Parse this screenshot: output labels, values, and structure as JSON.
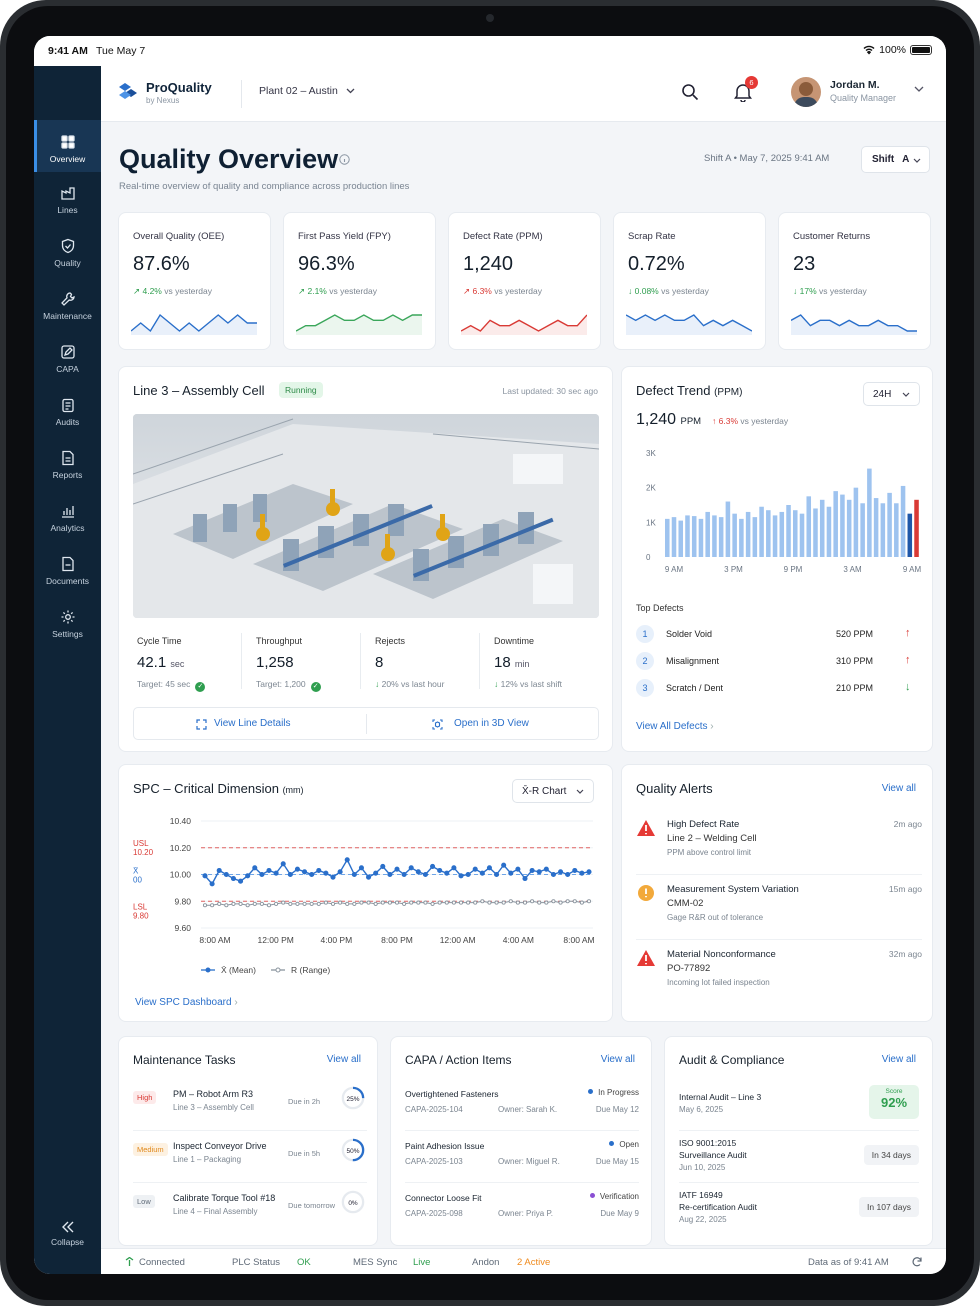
{
  "status": {
    "time": "9:41 AM",
    "date": "Tue May 7",
    "battery": "100%"
  },
  "brand": {
    "name": "ProQuality",
    "sub": "by Nexus"
  },
  "plant": "Plant 02 – Austin",
  "notifications": "6",
  "user": {
    "name": "Jordan M.",
    "role": "Quality Manager"
  },
  "sidebar": {
    "items": [
      {
        "label": "Overview",
        "icon": "grid-icon"
      },
      {
        "label": "Lines",
        "icon": "factory-icon"
      },
      {
        "label": "Quality",
        "icon": "shield-check-icon"
      },
      {
        "label": "Maintenance",
        "icon": "wrench-icon"
      },
      {
        "label": "CAPA",
        "icon": "edit-icon"
      },
      {
        "label": "Audits",
        "icon": "clipboard-icon"
      },
      {
        "label": "Reports",
        "icon": "report-icon"
      },
      {
        "label": "Analytics",
        "icon": "analytics-icon"
      },
      {
        "label": "Documents",
        "icon": "document-icon"
      },
      {
        "label": "Settings",
        "icon": "gear-icon"
      }
    ],
    "collapse": "Collapse"
  },
  "page": {
    "title": "Quality Overview",
    "subtitle": "Real-time overview of quality and compliance across production lines",
    "shift_info": "Shift A • May 7, 2025  9:41 AM",
    "shift_btn": "Shift   A"
  },
  "kpis": [
    {
      "label": "Overall Quality (OEE)",
      "value": "87.6%",
      "delta": "4.2%",
      "dir": "up",
      "delta_color": "#2f9e4f",
      "trend": "vs yesterday",
      "spark_color": "#2a6fca",
      "spark": [
        5,
        6,
        5,
        7,
        6,
        5,
        6,
        5,
        6,
        7,
        6,
        7,
        6,
        6
      ]
    },
    {
      "label": "First Pass Yield (FPY)",
      "value": "96.3%",
      "delta": "2.1%",
      "dir": "up",
      "delta_color": "#2f9e4f",
      "trend": "vs yesterday",
      "spark_color": "#3aa65a",
      "spark": [
        3,
        4,
        4,
        5,
        6,
        5,
        5,
        6,
        5,
        5,
        6,
        5,
        6,
        6
      ]
    },
    {
      "label": "Defect Rate (PPM)",
      "value": "1,240",
      "delta": "6.3%",
      "dir": "up",
      "delta_color": "#d93a35",
      "trend": "vs yesterday",
      "spark_color": "#d93a35",
      "spark": [
        4,
        5,
        4,
        6,
        5,
        5,
        6,
        5,
        4,
        5,
        6,
        5,
        5,
        7
      ]
    },
    {
      "label": "Scrap Rate",
      "value": "0.72%",
      "delta": "0.08%",
      "dir": "down",
      "delta_color": "#2f9e4f",
      "trend": "vs yesterday",
      "spark_color": "#2a6fca",
      "spark": [
        6,
        5,
        6,
        5,
        6,
        5,
        5,
        6,
        4,
        5,
        4,
        5,
        4,
        3
      ]
    },
    {
      "label": "Customer Returns",
      "value": "23",
      "delta": "17%",
      "dir": "down",
      "delta_color": "#2f9e4f",
      "trend": "vs yesterday",
      "spark_color": "#2a6fca",
      "spark": [
        6,
        7,
        5,
        6,
        6,
        5,
        6,
        5,
        5,
        6,
        5,
        5,
        4,
        4
      ]
    }
  ],
  "line": {
    "title": "Line 3 – Assembly Cell",
    "status": "Running",
    "updated": "Last updated: 30 sec ago",
    "metrics": [
      {
        "label": "Cycle Time",
        "value": "42.1",
        "unit": "sec",
        "sub": "Target: 45 sec"
      },
      {
        "label": "Throughput",
        "value": "1,258",
        "unit": "",
        "sub": "Target: 1,200"
      },
      {
        "label": "Rejects",
        "value": "8",
        "unit": "",
        "sub": "20% vs last hour"
      },
      {
        "label": "Downtime",
        "value": "18",
        "unit": "min",
        "sub": "12% vs last shift"
      }
    ],
    "link1": "View Line Details",
    "link2": "Open in 3D View"
  },
  "defect": {
    "title": "Defect Trend",
    "title_unit": "(PPM)",
    "range": "24H",
    "value": "1,240",
    "unit": "PPM",
    "delta": "6.3%",
    "delta_text": "vs yesterday",
    "top_title": "Top Defects",
    "top": [
      {
        "rank": "1",
        "name": "Solder Void",
        "ppm": "520 PPM",
        "dir": "up"
      },
      {
        "rank": "2",
        "name": "Misalignment",
        "ppm": "310 PPM",
        "dir": "up"
      },
      {
        "rank": "3",
        "name": "Scratch / Dent",
        "ppm": "210 PPM",
        "dir": "down"
      }
    ],
    "view_all": "View All Defects"
  },
  "spc": {
    "title": "SPC – Critical Dimension",
    "unit": "(mm)",
    "chart_type": "X̄-R Chart",
    "usl_label": "USL",
    "lsl_label": "LSL",
    "xbar_label": "X̄",
    "link": "View SPC Dashboard"
  },
  "alerts": {
    "title": "Quality Alerts",
    "view_all": "View all",
    "items": [
      {
        "title": "High Defect Rate",
        "sub": "Line 2 – Welding Cell",
        "desc": "PPM above control limit",
        "time": "2m ago",
        "icon": "warning-icon",
        "color": "#e53935"
      },
      {
        "title": "Measurement System Variation",
        "sub": "CMM-02",
        "desc": "Gage R&R out of tolerance",
        "time": "15m ago",
        "icon": "alert-circle-icon",
        "color": "#f2a93b"
      },
      {
        "title": "Material Nonconformance",
        "sub": "PO-77892",
        "desc": "Incoming lot failed inspection",
        "time": "32m ago",
        "icon": "warning-icon",
        "color": "#e53935"
      }
    ]
  },
  "maintenance": {
    "title": "Maintenance Tasks",
    "view_all": "View all",
    "items": [
      {
        "priority": "High",
        "pcolor": "#d93a35",
        "pbg": "#fdeaea",
        "title": "PM – Robot Arm R3",
        "sub": "Line 3 – Assembly Cell",
        "due": "Due in 2h",
        "progress": "25%",
        "pct": 0.25
      },
      {
        "priority": "Medium",
        "pcolor": "#e08a1e",
        "pbg": "#fdf1e1",
        "title": "Inspect Conveyor Drive",
        "sub": "Line 1 – Packaging",
        "due": "Due in 5h",
        "progress": "50%",
        "pct": 0.5
      },
      {
        "priority": "Low",
        "pcolor": "#5f6a77",
        "pbg": "#eef1f4",
        "title": "Calibrate Torque Tool #18",
        "sub": "Line 4 – Final Assembly",
        "due": "Due tomorrow",
        "progress": "0%",
        "pct": 0
      }
    ]
  },
  "capa": {
    "title": "CAPA / Action Items",
    "view_all": "View all",
    "items": [
      {
        "title": "Overtightened Fasteners",
        "id": "CAPA-2025-104",
        "owner": "Owner: Sarah K.",
        "status": "In Progress",
        "scolor": "#2a6fca",
        "due": "Due May 12"
      },
      {
        "title": "Paint Adhesion Issue",
        "id": "CAPA-2025-103",
        "owner": "Owner: Miguel R.",
        "status": "Open",
        "scolor": "#2a6fca",
        "due": "Due May 15"
      },
      {
        "title": "Connector Loose Fit",
        "id": "CAPA-2025-098",
        "owner": "Owner: Priya P.",
        "status": "Verification",
        "scolor": "#8a4fd3",
        "due": "Due May 9"
      }
    ]
  },
  "audit": {
    "title": "Audit & Compliance",
    "view_all": "View all",
    "items": [
      {
        "title": "Internal Audit – Line 3",
        "date": "May 6, 2025",
        "score_label": "Score",
        "score": "92%"
      },
      {
        "title": "ISO 9001:2015\nSurveillance Audit",
        "date": "Jun 10, 2025",
        "when": "In 34 days"
      },
      {
        "title": "IATF 16949\nRe-certification Audit",
        "date": "Aug 22, 2025",
        "when": "In 107 days"
      }
    ]
  },
  "footer": {
    "connected": "Connected",
    "plc_label": "PLC Status",
    "plc": "OK",
    "mes_label": "MES Sync",
    "mes": "Live",
    "andon_label": "Andon",
    "andon": "2 Active",
    "data_as_of": "Data as of 9:41 AM"
  },
  "chart_data": [
    {
      "type": "bar",
      "title": "Defect Trend (PPM)",
      "ylim": [
        0,
        3000
      ],
      "yticks": [
        "0",
        "1K",
        "2K",
        "3K"
      ],
      "xticks": [
        "9 AM",
        "3 PM",
        "9 PM",
        "3 AM",
        "9 AM"
      ],
      "values": [
        1100,
        1150,
        1050,
        1200,
        1180,
        1100,
        1300,
        1200,
        1150,
        1600,
        1250,
        1100,
        1300,
        1150,
        1450,
        1350,
        1200,
        1300,
        1500,
        1350,
        1250,
        1750,
        1400,
        1650,
        1450,
        1900,
        1800,
        1650,
        2000,
        1550,
        2550,
        1700,
        1550,
        1850,
        1550,
        2050,
        1250,
        1650
      ],
      "highlight": [
        {
          "index": 36,
          "color": "#1f57a8"
        },
        {
          "index": 37,
          "color": "#d93a35"
        }
      ]
    },
    {
      "type": "line",
      "title": "SPC – Critical Dimension (mm)",
      "ylim": [
        9.6,
        10.4
      ],
      "yticks": [
        "9.60",
        "9.80",
        "10.00",
        "10.20",
        "10.40"
      ],
      "xticks": [
        "8:00 AM",
        "12:00 PM",
        "4:00 PM",
        "8:00 PM",
        "12:00 AM",
        "4:00 AM",
        "8:00 AM"
      ],
      "usl": 10.2,
      "lsl": 9.8,
      "usl_text": "10.20",
      "lsl_text": "9.80",
      "center_text": "00",
      "center": 10.0,
      "series": [
        {
          "name": "X̄ (Mean)",
          "color": "#2a6fca",
          "values": [
            9.99,
            9.93,
            10.03,
            10.0,
            9.97,
            9.95,
            9.99,
            10.05,
            10.0,
            10.03,
            10.01,
            10.08,
            10.0,
            10.04,
            10.02,
            10.0,
            10.03,
            10.01,
            9.98,
            10.02,
            10.11,
            10.0,
            10.05,
            9.98,
            10.01,
            10.06,
            10.0,
            10.04,
            10.0,
            10.05,
            10.02,
            10.0,
            10.06,
            10.03,
            10.01,
            10.05,
            9.99,
            10.0,
            10.04,
            10.01,
            10.05,
            10.0,
            10.07,
            10.01,
            10.04,
            9.97,
            10.03,
            10.02,
            10.04,
            10.0,
            10.02,
            10.0,
            10.03,
            10.01,
            10.02
          ]
        },
        {
          "name": "R (Range)",
          "color": "#8a949e",
          "values": [
            9.77,
            9.77,
            9.78,
            9.77,
            9.78,
            9.78,
            9.77,
            9.78,
            9.78,
            9.77,
            9.78,
            9.79,
            9.78,
            9.78,
            9.78,
            9.78,
            9.78,
            9.79,
            9.78,
            9.79,
            9.78,
            9.78,
            9.79,
            9.79,
            9.78,
            9.79,
            9.79,
            9.79,
            9.78,
            9.79,
            9.79,
            9.79,
            9.78,
            9.79,
            9.79,
            9.79,
            9.79,
            9.79,
            9.79,
            9.8,
            9.79,
            9.79,
            9.79,
            9.8,
            9.79,
            9.79,
            9.8,
            9.79,
            9.79,
            9.8,
            9.79,
            9.8,
            9.8,
            9.79,
            9.8
          ]
        }
      ]
    }
  ]
}
